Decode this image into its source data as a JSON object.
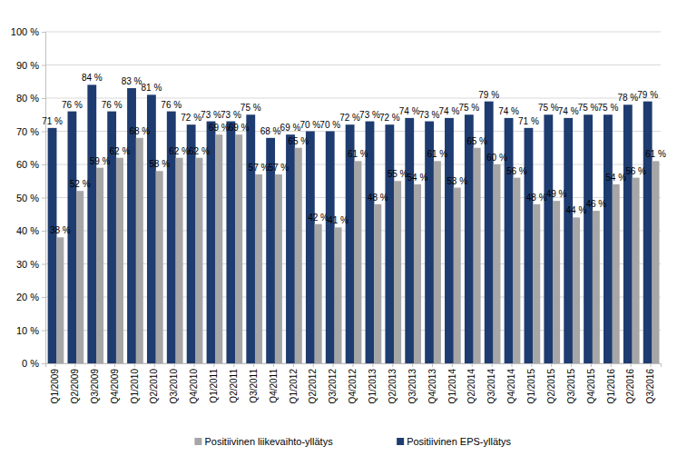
{
  "chart_data": {
    "type": "bar",
    "categories": [
      "Q1/2009",
      "Q2/2009",
      "Q3/2009",
      "Q4/2009",
      "Q1/2010",
      "Q2/2010",
      "Q3/2010",
      "Q4/2010",
      "Q1/2011",
      "Q2/2011",
      "Q3/2011",
      "Q4/2011",
      "Q1/2012",
      "Q2/2012",
      "Q3/2012",
      "Q4/2012",
      "Q1/2013",
      "Q2/2013",
      "Q3/2013",
      "Q4/2013",
      "Q1/2014",
      "Q2/2014",
      "Q3/2014",
      "Q4/2014",
      "Q1/2015",
      "Q2/2015",
      "Q3/2015",
      "Q4/2015",
      "Q1/2016",
      "Q2/2016",
      "Q3/2016"
    ],
    "series": [
      {
        "name": "Positiivinen liikevaihto-yllätys",
        "color": "#a6a6a6",
        "values": [
          38,
          52,
          59,
          62,
          68,
          58,
          62,
          62,
          69,
          69,
          57,
          57,
          65,
          42,
          41,
          61,
          48,
          55,
          54,
          61,
          53,
          65,
          60,
          56,
          48,
          49,
          44,
          46,
          54,
          56,
          61
        ],
        "value_labels": [
          "38 %",
          "52 %",
          "59 %",
          "62 %",
          "68 %",
          "58 %",
          "62 %",
          "62 %",
          "69 %",
          "69 %",
          "57 %",
          "57 %",
          "65 %",
          "42 %",
          "41 %",
          "61 %",
          "48 %",
          "55 %",
          "54 %",
          "61 %",
          "53 %",
          "65 %",
          "60 %",
          "56 %",
          "48 %",
          "49 %",
          "44 %",
          "46 %",
          "54 %",
          "56 %",
          "61 %"
        ]
      },
      {
        "name": "Positiivinen EPS-yllätys",
        "color": "#1f3c70",
        "values": [
          71,
          76,
          84,
          76,
          83,
          81,
          76,
          72,
          73,
          73,
          75,
          68,
          69,
          70,
          70,
          72,
          73,
          72,
          74,
          73,
          74,
          75,
          79,
          74,
          71,
          75,
          74,
          75,
          75,
          78,
          79
        ],
        "value_labels": [
          "71 %",
          "76 %",
          "84 %",
          "76 %",
          "83 %",
          "81 %",
          "76 %",
          "72 %",
          "73 %",
          "73 %",
          "75 %",
          "68 %",
          "69 %",
          "70 %",
          "70 %",
          "72 %",
          "73 %",
          "72 %",
          "74 %",
          "73 %",
          "74 %",
          "75 %",
          "79 %",
          "74 %",
          "71 %",
          "75 %",
          "74 %",
          "75 %",
          "75 %",
          "78 %",
          "79 %"
        ]
      }
    ],
    "ylim": [
      0,
      100
    ],
    "yticks": [
      {
        "value": 0,
        "label": "0 %"
      },
      {
        "value": 10,
        "label": "10 %"
      },
      {
        "value": 20,
        "label": "20 %"
      },
      {
        "value": 30,
        "label": "30 %"
      },
      {
        "value": 40,
        "label": "40 %"
      },
      {
        "value": 50,
        "label": "50 %"
      },
      {
        "value": 60,
        "label": "60 %"
      },
      {
        "value": 70,
        "label": "70 %"
      },
      {
        "value": 80,
        "label": "80 %"
      },
      {
        "value": 90,
        "label": "90 %"
      },
      {
        "value": 100,
        "label": "100 %"
      }
    ],
    "grid": true,
    "legend": "bottom",
    "data_labels": true
  }
}
